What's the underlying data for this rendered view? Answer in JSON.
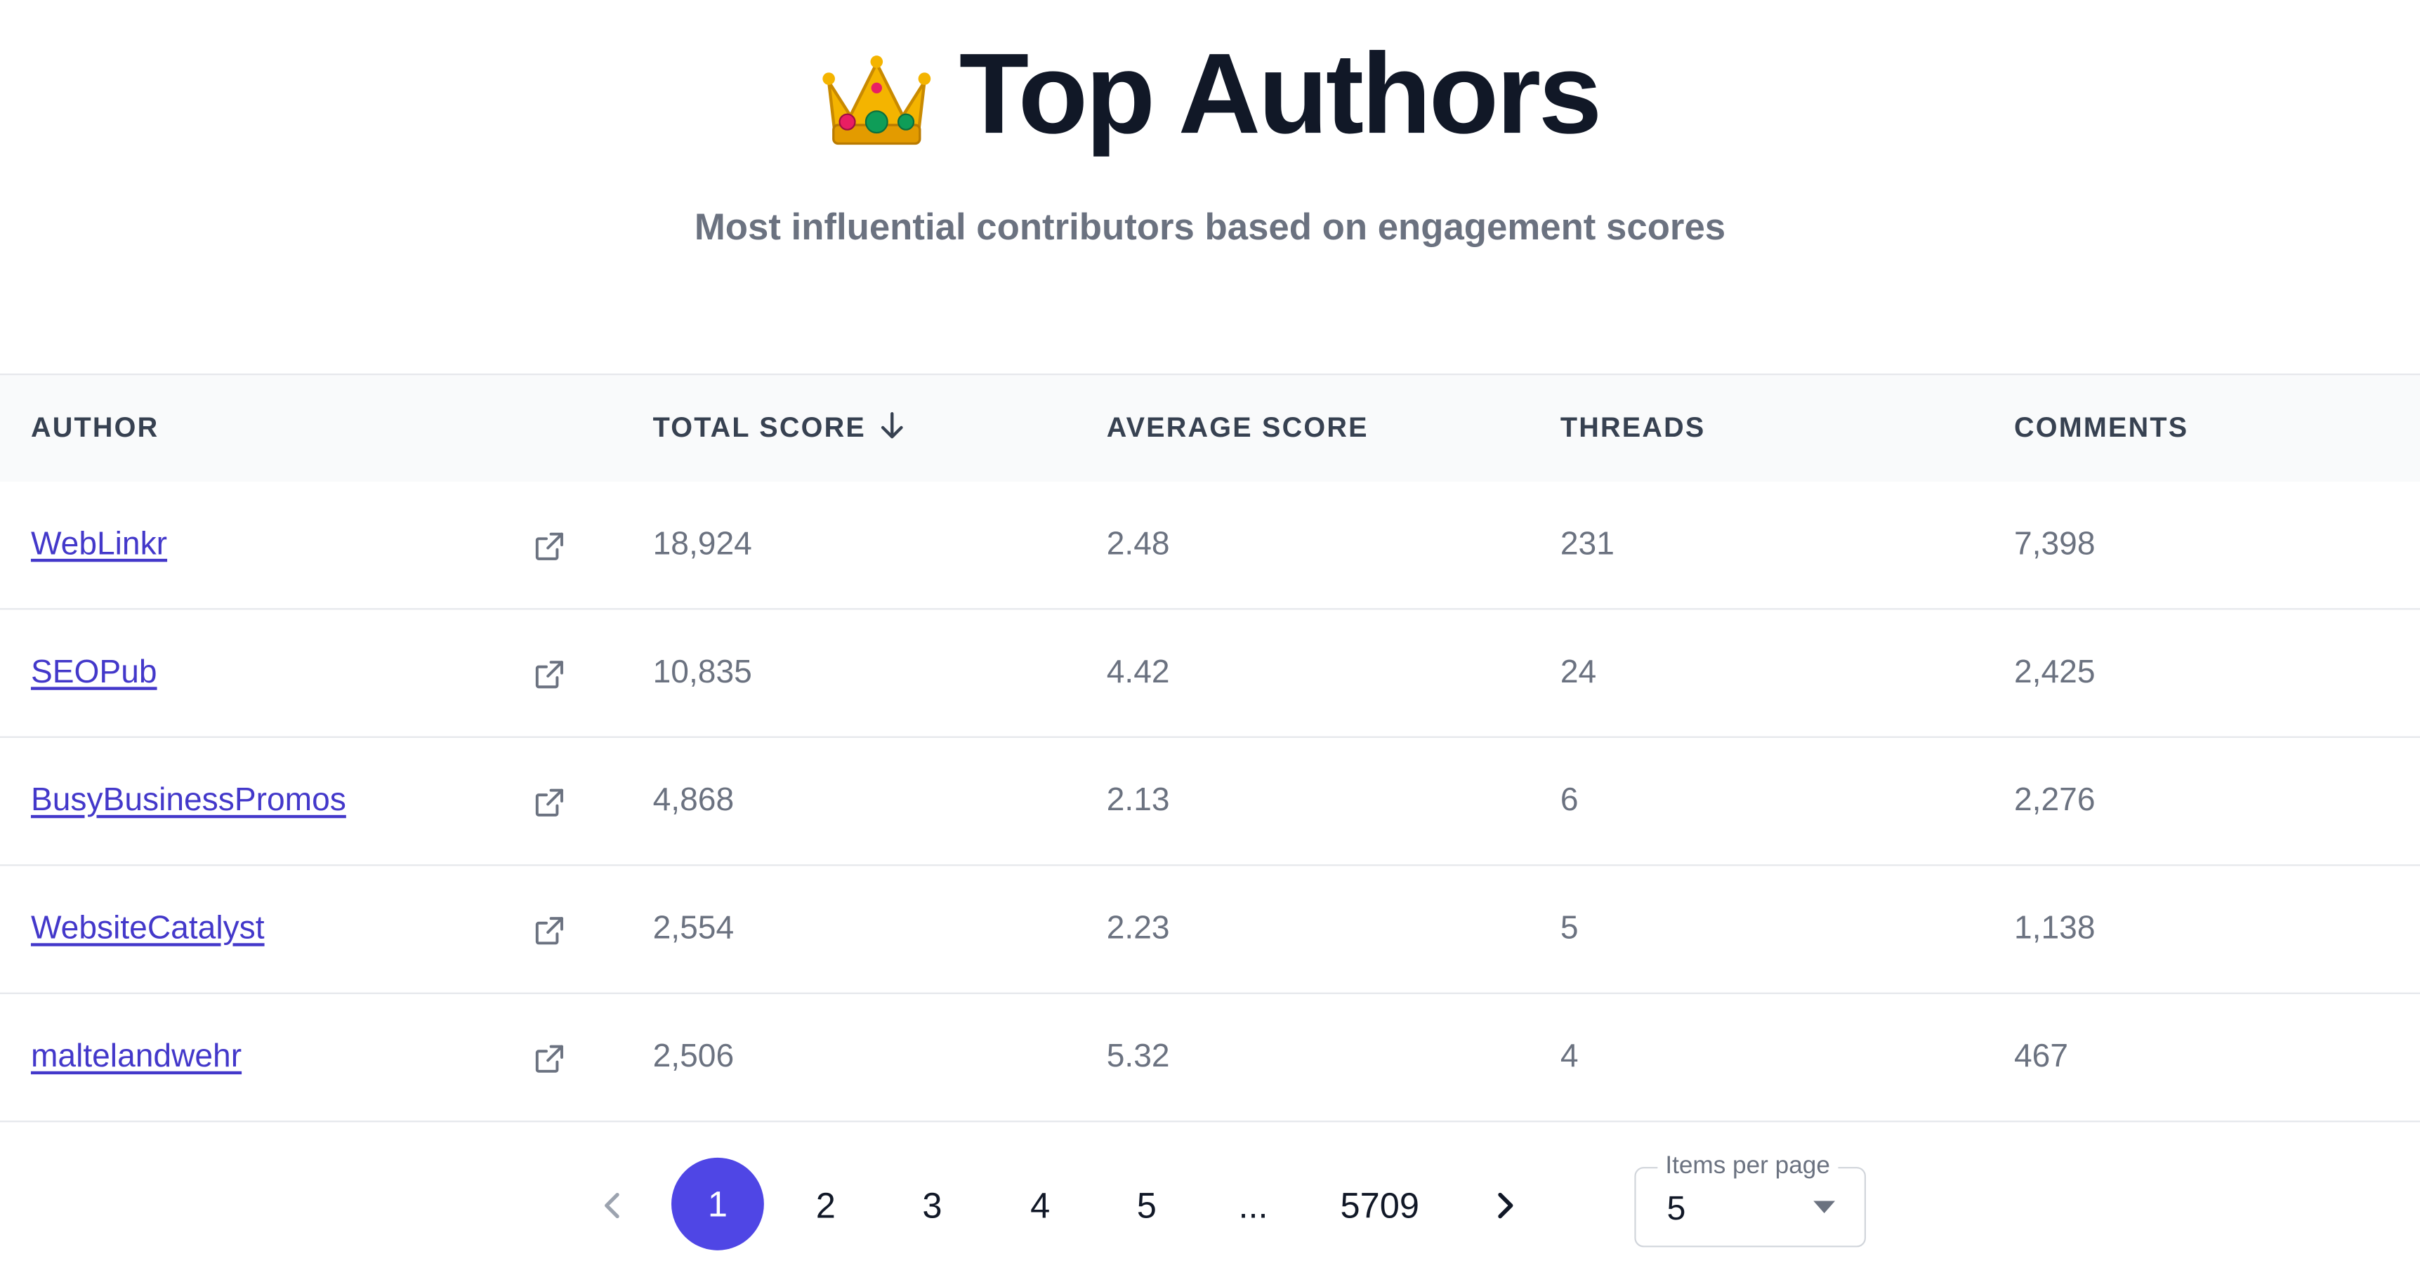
{
  "header": {
    "title": "Top Authors",
    "subtitle": "Most influential contributors based on engagement scores"
  },
  "table": {
    "columns": {
      "author": "AUTHOR",
      "total_score": "TOTAL SCORE",
      "average_score": "AVERAGE SCORE",
      "threads": "THREADS",
      "comments": "COMMENTS"
    },
    "sort": {
      "column": "TOTAL SCORE",
      "direction": "descending"
    },
    "rows": [
      {
        "author": "WebLinkr",
        "total_score": "18,924",
        "average_score": "2.48",
        "threads": "231",
        "comments": "7,398"
      },
      {
        "author": "SEOPub",
        "total_score": "10,835",
        "average_score": "4.42",
        "threads": "24",
        "comments": "2,425"
      },
      {
        "author": "BusyBusinessPromos",
        "total_score": "4,868",
        "average_score": "2.13",
        "threads": "6",
        "comments": "2,276"
      },
      {
        "author": "WebsiteCatalyst",
        "total_score": "2,554",
        "average_score": "2.23",
        "threads": "5",
        "comments": "1,138"
      },
      {
        "author": "maltelandwehr",
        "total_score": "2,506",
        "average_score": "5.32",
        "threads": "4",
        "comments": "467"
      }
    ]
  },
  "pagination": {
    "current_page": "1",
    "pages": [
      "1",
      "2",
      "3",
      "4",
      "5"
    ],
    "ellipsis": "...",
    "last_page": "5709",
    "items_per_page_label": "Items per page",
    "items_per_page_value": "5"
  },
  "colors": {
    "accent": "#4f46e5",
    "link": "#4338ca",
    "header_bg": "#f9fafb",
    "muted_text": "#6b7280"
  },
  "icons": {
    "title": "crown-icon",
    "sort": "arrow-down-icon",
    "row_action": "external-link-icon",
    "prev": "chevron-left-icon",
    "next": "chevron-right-icon",
    "dropdown": "caret-down-icon"
  }
}
